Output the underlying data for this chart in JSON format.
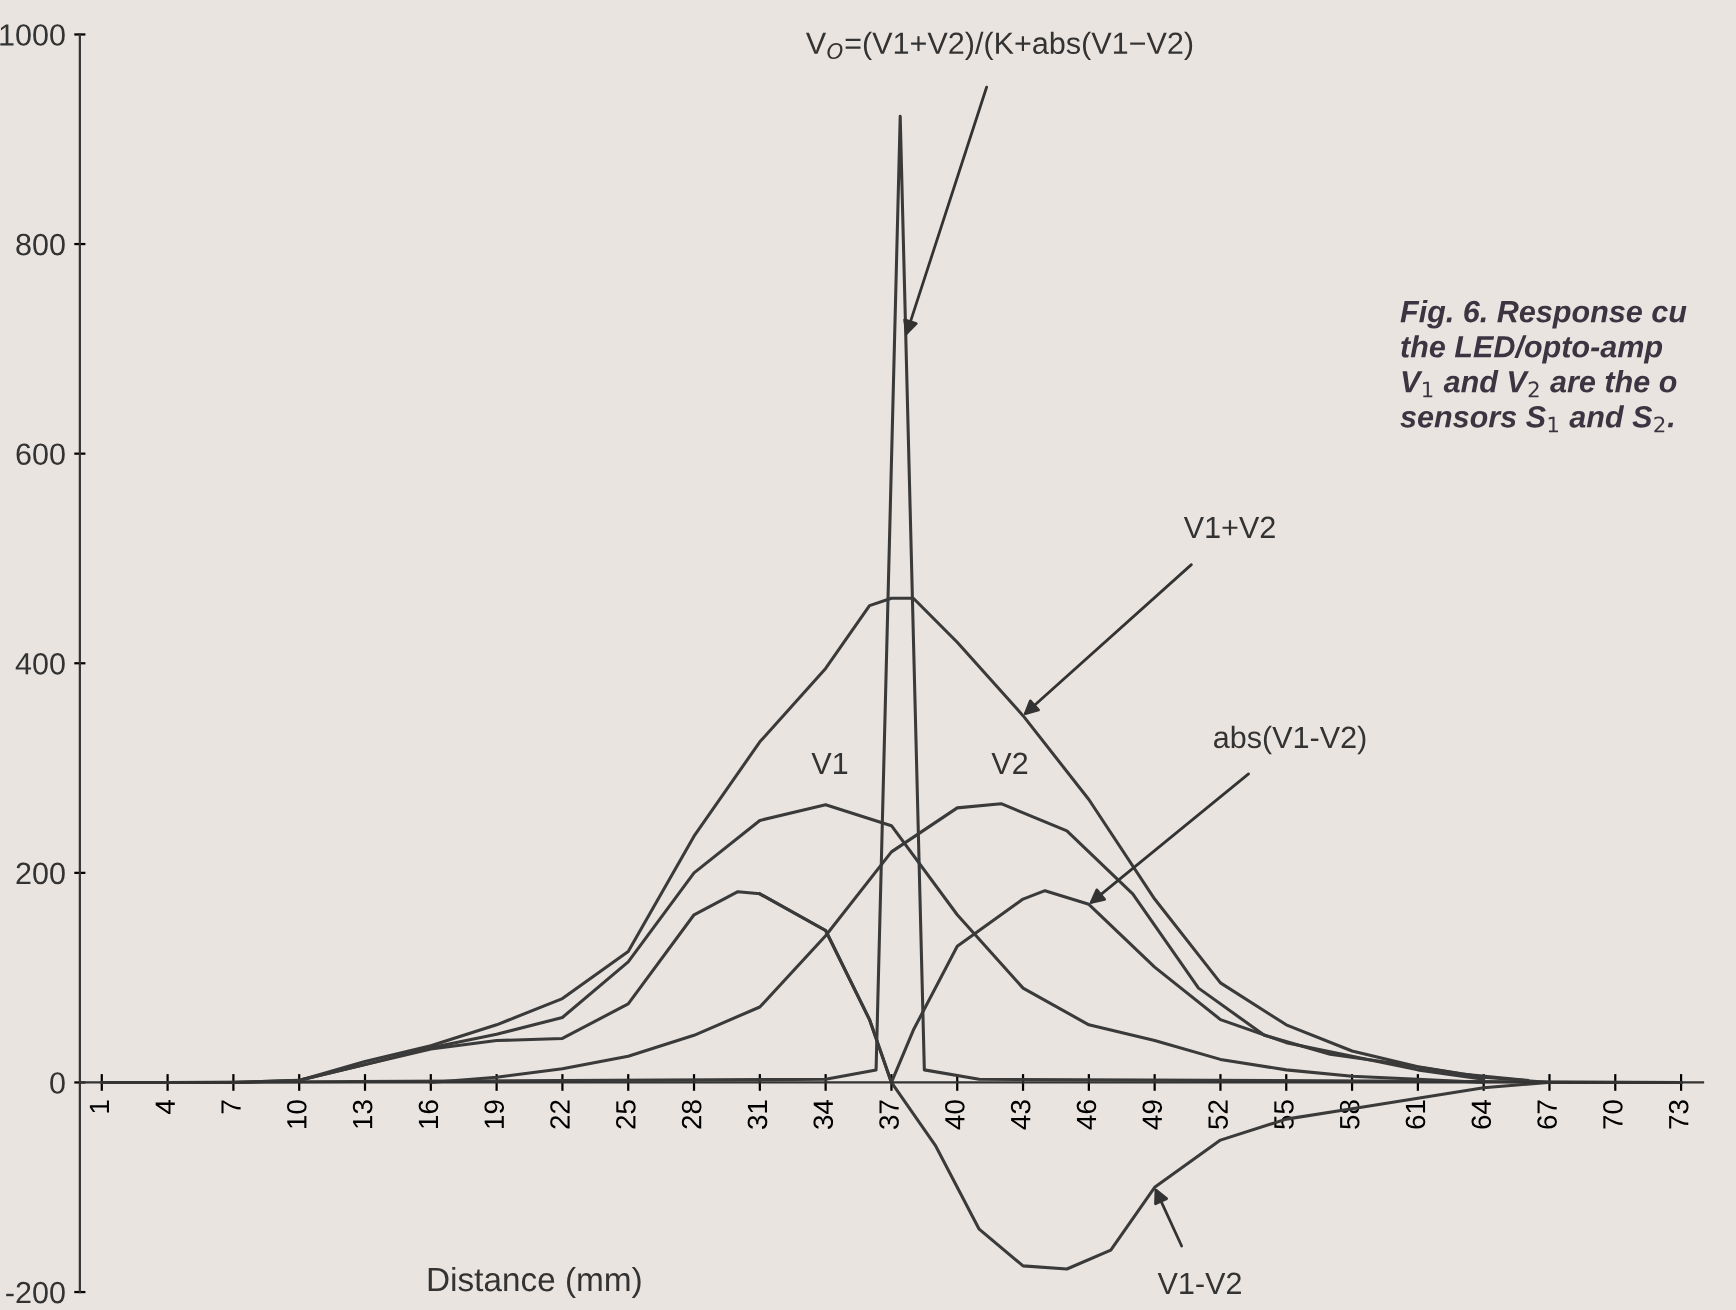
{
  "chart_data": {
    "type": "line",
    "xlabel": "Distance (mm)",
    "xlim": [
      0,
      74
    ],
    "xticks": [
      1,
      4,
      7,
      10,
      13,
      16,
      19,
      22,
      25,
      28,
      31,
      34,
      37,
      40,
      43,
      46,
      49,
      52,
      55,
      58,
      61,
      64,
      67,
      70,
      73
    ],
    "ylim": [
      -200,
      1000
    ],
    "yticks": [
      -200,
      0,
      200,
      400,
      600,
      800,
      1000
    ],
    "grid": false,
    "marker": "none",
    "line_style": "solid",
    "series": [
      {
        "color": "#3a3a3a",
        "x": [
          1,
          7,
          10,
          13,
          16,
          19,
          22,
          25,
          28,
          31,
          34,
          36,
          37,
          38,
          40,
          43,
          46,
          49,
          52,
          55,
          58,
          61,
          64,
          67,
          73
        ],
        "values": [
          0,
          0,
          2,
          20,
          35,
          55,
          80,
          125,
          235,
          325,
          395,
          455,
          462,
          462,
          420,
          350,
          270,
          175,
          95,
          55,
          30,
          15,
          5,
          0,
          0
        ]
      },
      {
        "color": "#3a3a3a",
        "x": [
          7,
          10,
          13,
          16,
          19,
          22,
          25,
          28,
          31,
          34,
          37,
          40,
          43,
          46,
          49,
          52,
          55,
          58,
          61,
          64
        ],
        "values": [
          0,
          2,
          17,
          33,
          46,
          62,
          115,
          200,
          250,
          265,
          245,
          160,
          90,
          55,
          40,
          22,
          12,
          6,
          3,
          0
        ]
      },
      {
        "color": "#3a3a3a",
        "x": [
          16,
          19,
          22,
          25,
          28,
          31,
          34,
          37,
          40,
          42,
          45,
          48,
          51,
          54,
          57,
          60,
          63,
          66
        ],
        "values": [
          0,
          5,
          13,
          25,
          45,
          72,
          140,
          220,
          262,
          266,
          240,
          180,
          90,
          45,
          27,
          18,
          8,
          2
        ]
      },
      {
        "color": "#3a3a3a",
        "x": [
          10,
          13,
          16,
          19,
          22,
          25,
          28,
          30,
          31,
          34,
          36,
          37,
          38,
          40,
          43,
          44,
          46,
          49,
          52,
          55,
          58,
          61,
          64
        ],
        "values": [
          2,
          17,
          32,
          40,
          42,
          75,
          160,
          182,
          180,
          145,
          60,
          0,
          50,
          130,
          175,
          183,
          170,
          110,
          60,
          38,
          25,
          12,
          3
        ]
      },
      {
        "color": "#3a3a3a",
        "x": [
          31,
          34,
          36,
          37,
          39,
          41,
          43,
          45,
          47,
          49,
          52,
          55,
          58,
          61,
          64,
          67
        ],
        "values": [
          180,
          145,
          60,
          0,
          -60,
          -140,
          -175,
          -178,
          -160,
          -100,
          -55,
          -35,
          -25,
          -15,
          -5,
          0
        ]
      },
      {
        "color": "#3a3a3a",
        "x": [
          4,
          34,
          36.3,
          37.4,
          38.5,
          41,
          73
        ],
        "values": [
          0,
          3,
          12,
          922,
          12,
          3,
          0
        ]
      }
    ],
    "annotations": [
      {
        "text": "V$_{O}$=(V1+V2)/(K+abs(V1−V2)",
        "x": 37.65,
        "y": 712
      },
      "V1",
      "V2",
      {
        "text": "V1+V2",
        "x": 43,
        "y": 350
      },
      {
        "text": "abs(V1-V2)",
        "x": 46,
        "y": 170
      },
      {
        "text": "V1-V2",
        "x": 49,
        "y": -100
      },
      "Fig. 6. Response cu\nthe LED/opto-amp\nV$_{1}$ and V$_{2}$ are the o\nsensors S$_{1}$ and S$_{2}$."
    ]
  }
}
